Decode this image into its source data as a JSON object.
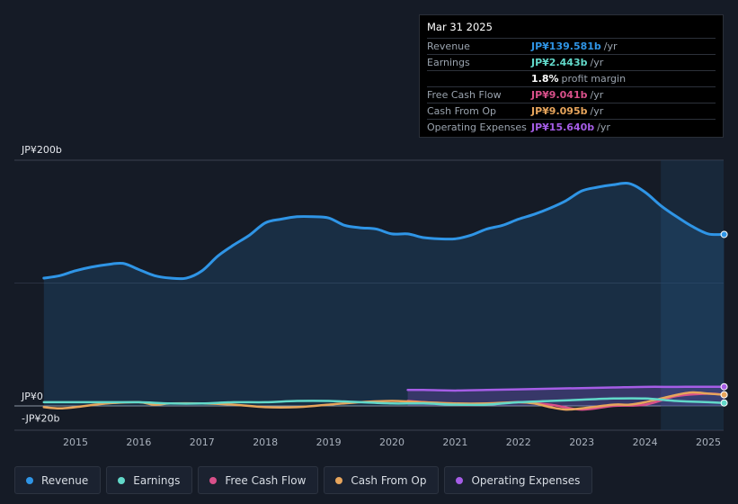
{
  "tooltip": {
    "date": "Mar 31 2025",
    "rows": [
      {
        "label": "Revenue",
        "value": "JP¥139.581b",
        "unit": "/yr",
        "color": "#2f95e6"
      },
      {
        "label": "Earnings",
        "value": "JP¥2.443b",
        "unit": "/yr",
        "color": "#62d8c9"
      },
      {
        "label": "",
        "value": "1.8%",
        "unit": "profit margin",
        "color": "#ffffff"
      },
      {
        "label": "Free Cash Flow",
        "value": "JP¥9.041b",
        "unit": "/yr",
        "color": "#d9508a"
      },
      {
        "label": "Cash From Op",
        "value": "JP¥9.095b",
        "unit": "/yr",
        "color": "#e7a55c"
      },
      {
        "label": "Operating Expenses",
        "value": "JP¥15.640b",
        "unit": "/yr",
        "color": "#a55de6"
      }
    ]
  },
  "legend": [
    {
      "label": "Revenue",
      "color": "#2f95e6"
    },
    {
      "label": "Earnings",
      "color": "#62d8c9"
    },
    {
      "label": "Free Cash Flow",
      "color": "#d9508a"
    },
    {
      "label": "Cash From Op",
      "color": "#e7a55c"
    },
    {
      "label": "Operating Expenses",
      "color": "#a55de6"
    }
  ],
  "chart_data": {
    "type": "line",
    "title": "",
    "xlabel": "",
    "ylabel": "",
    "unit": "JP¥ billions, trailing twelve months",
    "ylim": [
      -20,
      200
    ],
    "xlim": [
      2014.5,
      2025.25
    ],
    "y_tick_labels": [
      {
        "value": 200,
        "label": "JP¥200b"
      },
      {
        "value": 0,
        "label": "JP¥0"
      },
      {
        "value": -20,
        "label": "-JP¥20b"
      }
    ],
    "x_tick_labels": [
      "2015",
      "2016",
      "2017",
      "2018",
      "2019",
      "2020",
      "2021",
      "2022",
      "2023",
      "2024",
      "2025"
    ],
    "x_tick_values": [
      2015,
      2016,
      2017,
      2018,
      2019,
      2020,
      2021,
      2022,
      2023,
      2024,
      2025
    ],
    "highlight_start": 2024.25,
    "series": [
      {
        "name": "Revenue",
        "color": "#2f95e6",
        "area": true,
        "x": [
          2014.5,
          2014.75,
          2015.0,
          2015.25,
          2015.5,
          2015.75,
          2016.0,
          2016.25,
          2016.5,
          2016.75,
          2017.0,
          2017.25,
          2017.5,
          2017.75,
          2018.0,
          2018.25,
          2018.5,
          2018.75,
          2019.0,
          2019.25,
          2019.5,
          2019.75,
          2020.0,
          2020.25,
          2020.5,
          2020.75,
          2021.0,
          2021.25,
          2021.5,
          2021.75,
          2022.0,
          2022.25,
          2022.5,
          2022.75,
          2023.0,
          2023.25,
          2023.5,
          2023.75,
          2024.0,
          2024.25,
          2024.5,
          2024.75,
          2025.0,
          2025.25
        ],
        "values": [
          104,
          106,
          110,
          113,
          115,
          116,
          111,
          106,
          104,
          104,
          110,
          122,
          131,
          139,
          149,
          152,
          154,
          154,
          153,
          147,
          145,
          144,
          140,
          140,
          137,
          136,
          136,
          139,
          144,
          147,
          152,
          156,
          161,
          167,
          175,
          178,
          180,
          181,
          174,
          163,
          154,
          146,
          140,
          139.6
        ]
      },
      {
        "name": "Earnings",
        "color": "#62d8c9",
        "area": false,
        "x": [
          2014.5,
          2015.0,
          2015.5,
          2016.0,
          2016.5,
          2017.0,
          2017.5,
          2018.0,
          2018.5,
          2019.0,
          2019.5,
          2020.0,
          2020.5,
          2021.0,
          2021.5,
          2022.0,
          2022.5,
          2023.0,
          2023.5,
          2024.0,
          2024.5,
          2025.0,
          2025.25
        ],
        "values": [
          3,
          3,
          3,
          3,
          2,
          2,
          3,
          3,
          4,
          4,
          3,
          2,
          2,
          1,
          1,
          3,
          4,
          5,
          6,
          6,
          4,
          3,
          2.4
        ]
      },
      {
        "name": "Free Cash Flow",
        "color": "#d9508a",
        "area": false,
        "x": [
          2020.25,
          2020.5,
          2021.0,
          2021.5,
          2022.0,
          2022.5,
          2023.0,
          2023.5,
          2024.0,
          2024.5,
          2025.0,
          2025.25
        ],
        "values": [
          4,
          3,
          1,
          1,
          3,
          1,
          -3,
          0,
          1,
          8,
          10,
          9.0
        ]
      },
      {
        "name": "Cash From Op",
        "color": "#e7a55c",
        "area": false,
        "x": [
          2014.5,
          2014.75,
          2015.0,
          2015.5,
          2016.0,
          2016.25,
          2016.5,
          2017.0,
          2017.5,
          2018.0,
          2018.5,
          2019.0,
          2019.5,
          2020.0,
          2020.5,
          2021.0,
          2021.5,
          2022.0,
          2022.25,
          2022.5,
          2022.75,
          2023.0,
          2023.5,
          2023.75,
          2024.0,
          2024.5,
          2024.75,
          2025.0,
          2025.25
        ],
        "values": [
          -1,
          -2,
          -1,
          2,
          3,
          1,
          2,
          2,
          1,
          -1,
          -1,
          1,
          3,
          4,
          3,
          2,
          2,
          3,
          2,
          -1,
          -3,
          -2,
          1,
          1,
          3,
          9,
          11,
          10,
          9.1
        ]
      },
      {
        "name": "Operating Expenses",
        "color": "#a55de6",
        "area": true,
        "x": [
          2020.25,
          2020.5,
          2021.0,
          2021.5,
          2022.0,
          2022.5,
          2023.0,
          2023.5,
          2024.0,
          2024.5,
          2025.0,
          2025.25
        ],
        "values": [
          13,
          13,
          12.5,
          13,
          13.5,
          14,
          14.5,
          15,
          15.5,
          15.5,
          15.6,
          15.6
        ]
      }
    ]
  }
}
